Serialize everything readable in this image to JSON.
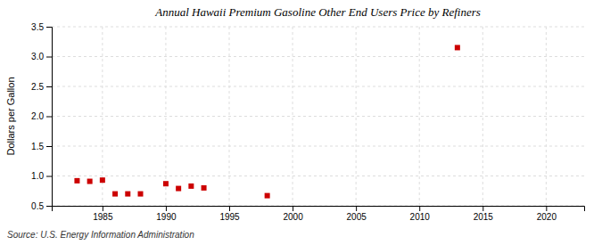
{
  "chart_data": {
    "type": "scatter",
    "title": "Annual Hawaii Premium Gasoline Other End Users Price by Refiners",
    "ylabel": "Dollars per Gallon",
    "annotations": [
      "Source: U.S. Energy Information Administration"
    ],
    "x": [
      1983,
      1984,
      1985,
      1986,
      1987,
      1988,
      1990,
      1991,
      1992,
      1993,
      1998,
      2013
    ],
    "values": [
      0.92,
      0.91,
      0.93,
      0.7,
      0.7,
      0.7,
      0.87,
      0.79,
      0.83,
      0.8,
      0.67,
      3.15
    ],
    "color": "#cc0000",
    "marker": "square",
    "xlim": [
      1981,
      2023
    ],
    "ylim": [
      0.5,
      3.5
    ],
    "xticks": [
      1985,
      1990,
      1995,
      2000,
      2005,
      2010,
      2015,
      2020
    ],
    "yticks": [
      0.5,
      {
        "value": 1.0,
        "label": "1.0"
      },
      1.5,
      {
        "value": 2.0,
        "label": "2.0"
      },
      2.5,
      {
        "value": 3.0,
        "label": "3.0"
      },
      3.5
    ],
    "grid": true
  }
}
